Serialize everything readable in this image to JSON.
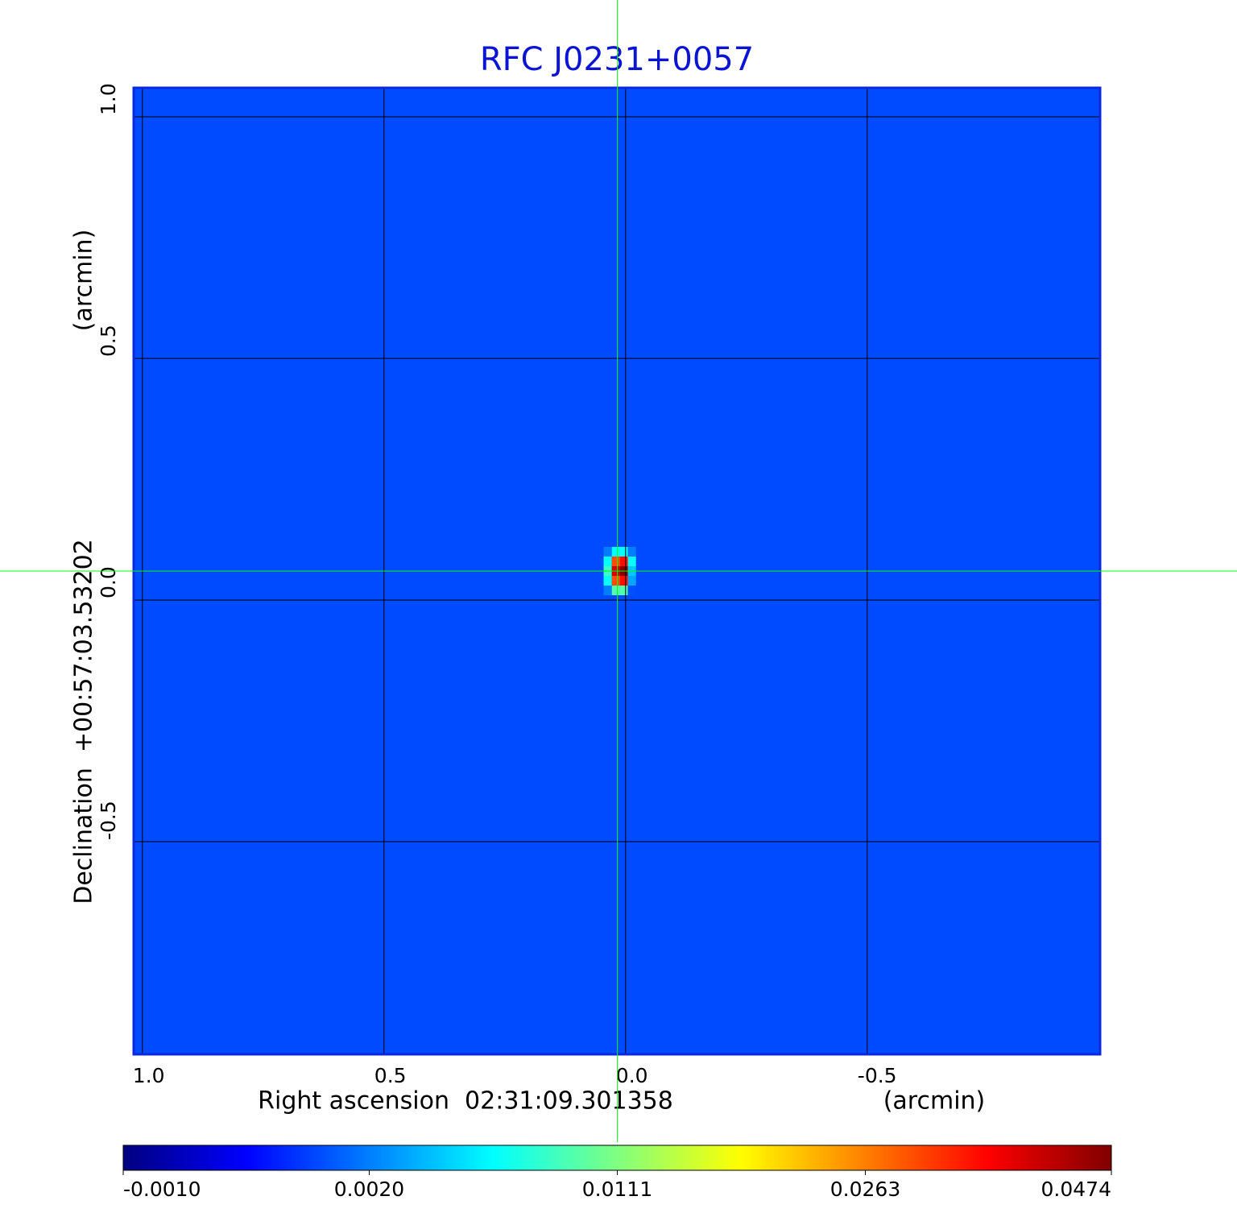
{
  "chart_data": {
    "type": "image",
    "title": "RFC J0231+0057",
    "x_label": "Right ascension  02:31:09.301358",
    "x_unit": "(arcmin)",
    "y_label": "Declination  +00:57:03.53202",
    "y_unit": "(arcmin)",
    "xlim": [
      1.018,
      -0.982
    ],
    "ylim": [
      -0.94,
      1.06
    ],
    "xticks": [
      {
        "value": 1,
        "label": "1.0"
      },
      0.5,
      {
        "value": 0,
        "label": "0.0"
      },
      -0.5
    ],
    "yticks": [
      {
        "value": 1,
        "label": "1.0"
      },
      0.5,
      {
        "value": 0,
        "label": "0.0"
      },
      -0.5
    ],
    "grid": true,
    "colormap": "jet",
    "color_scale": "sqrt",
    "clim": [
      -0.001,
      0.0474
    ],
    "cticks": [
      {
        "value": -0.001,
        "label": "-0.0010"
      },
      {
        "value": 0.002,
        "label": "0.0020"
      },
      0.0111,
      0.0263,
      0.0474
    ],
    "background_value": 0.0009,
    "source": {
      "x": [
        0.037,
        0.02,
        0.003,
        -0.013
      ],
      "y": [
        0.1,
        0.08,
        0.06,
        0.04,
        0.02
      ],
      "values": [
        [
          0.002,
          0.006,
          0.006,
          0.002
        ],
        [
          0.006,
          0.03,
          0.035,
          0.006
        ],
        [
          0.008,
          0.04,
          0.0474,
          0.004
        ],
        [
          0.006,
          0.03,
          0.035,
          0.003
        ],
        [
          0.002,
          0.009,
          0.009,
          0.001
        ]
      ]
    },
    "crosshair": {
      "x": 0.017,
      "y": 0.06,
      "color": "#00ff00"
    }
  }
}
